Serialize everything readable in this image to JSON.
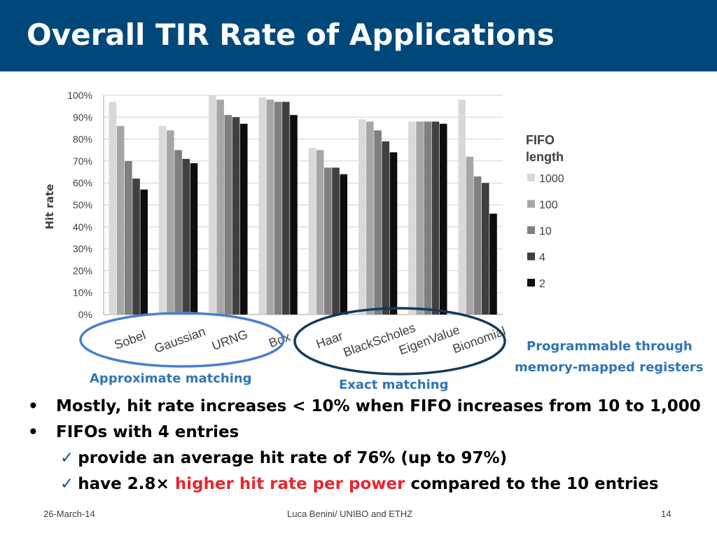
{
  "slide": {
    "title": "Overall TIR Rate of Applications"
  },
  "annotations": {
    "approximate": "Approximate matching",
    "exact": "Exact matching",
    "programmable_line1": "Programmable through",
    "programmable_line2": "memory-mapped registers"
  },
  "bullets": {
    "b1": "Mostly, hit rate increases < 10% when FIFO increases from 10 to 1,000",
    "b2": "FIFOs with 4 entries",
    "s1": "provide an average hit rate of 76% (up to 97%)",
    "s2_pre": "have 2.8× ",
    "s2_highlight": "higher hit rate per power",
    "s2_post": " compared to the 10 entries",
    "check": "✓"
  },
  "footer": {
    "date": "26-March-14",
    "author": "Luca Benini/ UNIBO and ETHZ",
    "page": "14"
  },
  "colors": {
    "title_bar": "#00487a",
    "ellipse": "#4a7fd0",
    "ellipse_exact": "#123a5e",
    "highlight": "#e8262f",
    "annotation": "#2e75b6"
  },
  "chart_data": {
    "type": "bar",
    "title": "",
    "xlabel": "",
    "ylabel": "Hit rate",
    "ylim": [
      0,
      100
    ],
    "yticks": [
      "0%",
      "10%",
      "20%",
      "30%",
      "40%",
      "50%",
      "60%",
      "70%",
      "80%",
      "90%",
      "100%"
    ],
    "grid": true,
    "legend_title": "FIFO length",
    "legend_position": "right",
    "categories": [
      "Sobel",
      "Gaussian",
      "URNG",
      "Box",
      "Haar",
      "BlackScholes",
      "EigenValue",
      "Bionomial"
    ],
    "series": [
      {
        "name": "1000",
        "color": "#d9d9d9",
        "values": [
          97,
          86,
          100,
          99,
          76,
          89,
          88,
          98
        ]
      },
      {
        "name": "100",
        "color": "#a6a6a6",
        "values": [
          86,
          84,
          98,
          98,
          75,
          88,
          88,
          72
        ]
      },
      {
        "name": "10",
        "color": "#7f7f7f",
        "values": [
          70,
          75,
          91,
          97,
          67,
          84,
          88,
          63
        ]
      },
      {
        "name": "4",
        "color": "#404040",
        "values": [
          62,
          71,
          90,
          97,
          67,
          79,
          88,
          60
        ]
      },
      {
        "name": "2",
        "color": "#0d0d0d",
        "values": [
          57,
          69,
          87,
          91,
          64,
          74,
          87,
          46
        ]
      }
    ]
  }
}
